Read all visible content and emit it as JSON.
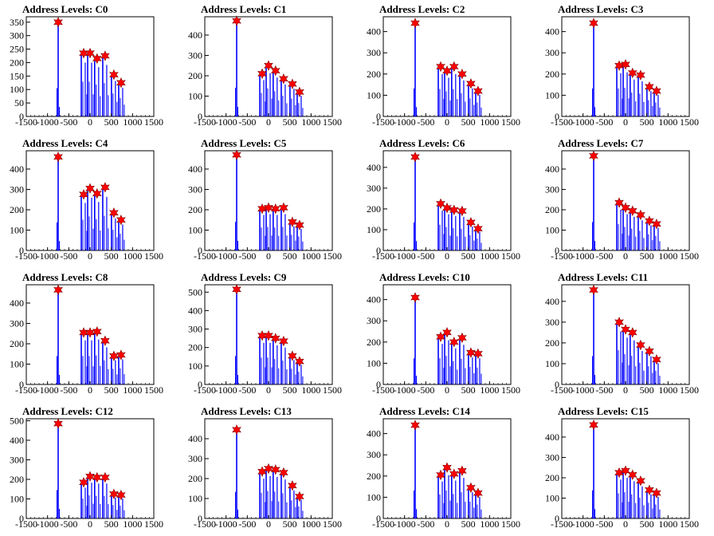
{
  "colors": {
    "histogram": "#0000ff",
    "peak_marker": "#ff0000",
    "axis": "#000000",
    "background": "#ffffff"
  },
  "chart_data": [
    {
      "type": "histogram",
      "title": "Address Levels: C0",
      "xlim": [
        -1500,
        1500
      ],
      "ylim": [
        0,
        370
      ],
      "yticks": [
        0,
        50,
        100,
        150,
        200,
        250,
        300,
        350
      ],
      "peaks": [
        {
          "x": -750,
          "y": 350
        },
        {
          "x": -150,
          "y": 235
        },
        {
          "x": 0,
          "y": 235
        },
        {
          "x": 165,
          "y": 215
        },
        {
          "x": 355,
          "y": 225
        },
        {
          "x": 560,
          "y": 155
        },
        {
          "x": 730,
          "y": 125
        }
      ]
    },
    {
      "type": "histogram",
      "title": "Address Levels: C1",
      "xlim": [
        -1500,
        1500
      ],
      "ylim": [
        0,
        490
      ],
      "yticks": [
        0,
        100,
        200,
        300,
        400
      ],
      "peaks": [
        {
          "x": -750,
          "y": 470
        },
        {
          "x": -150,
          "y": 210
        },
        {
          "x": 0,
          "y": 250
        },
        {
          "x": 165,
          "y": 225
        },
        {
          "x": 355,
          "y": 185
        },
        {
          "x": 560,
          "y": 160
        },
        {
          "x": 730,
          "y": 120
        }
      ]
    },
    {
      "type": "histogram",
      "title": "Address Levels: C2",
      "xlim": [
        -1500,
        1500
      ],
      "ylim": [
        0,
        470
      ],
      "yticks": [
        0,
        100,
        200,
        300,
        400
      ],
      "peaks": [
        {
          "x": -750,
          "y": 440
        },
        {
          "x": -150,
          "y": 235
        },
        {
          "x": 0,
          "y": 215
        },
        {
          "x": 165,
          "y": 235
        },
        {
          "x": 355,
          "y": 200
        },
        {
          "x": 560,
          "y": 155
        },
        {
          "x": 730,
          "y": 120
        }
      ]
    },
    {
      "type": "histogram",
      "title": "Address Levels: C3",
      "xlim": [
        -1500,
        1500
      ],
      "ylim": [
        0,
        470
      ],
      "yticks": [
        0,
        100,
        200,
        300,
        400
      ],
      "peaks": [
        {
          "x": -750,
          "y": 440
        },
        {
          "x": -150,
          "y": 240
        },
        {
          "x": 0,
          "y": 245
        },
        {
          "x": 165,
          "y": 205
        },
        {
          "x": 355,
          "y": 195
        },
        {
          "x": 560,
          "y": 140
        },
        {
          "x": 730,
          "y": 120
        }
      ]
    },
    {
      "type": "histogram",
      "title": "Address Levels: C4",
      "xlim": [
        -1500,
        1500
      ],
      "ylim": [
        0,
        490
      ],
      "yticks": [
        0,
        100,
        200,
        300,
        400
      ],
      "peaks": [
        {
          "x": -750,
          "y": 460
        },
        {
          "x": -150,
          "y": 275
        },
        {
          "x": 0,
          "y": 305
        },
        {
          "x": 165,
          "y": 280
        },
        {
          "x": 355,
          "y": 310
        },
        {
          "x": 560,
          "y": 185
        },
        {
          "x": 730,
          "y": 150
        }
      ]
    },
    {
      "type": "histogram",
      "title": "Address Levels: C5",
      "xlim": [
        -1500,
        1500
      ],
      "ylim": [
        0,
        490
      ],
      "yticks": [
        0,
        100,
        200,
        300,
        400
      ],
      "peaks": [
        {
          "x": -750,
          "y": 470
        },
        {
          "x": -150,
          "y": 205
        },
        {
          "x": 0,
          "y": 210
        },
        {
          "x": 165,
          "y": 205
        },
        {
          "x": 355,
          "y": 210
        },
        {
          "x": 560,
          "y": 140
        },
        {
          "x": 730,
          "y": 125
        }
      ]
    },
    {
      "type": "histogram",
      "title": "Address Levels: C6",
      "xlim": [
        -1500,
        1500
      ],
      "ylim": [
        0,
        480
      ],
      "yticks": [
        0,
        100,
        200,
        300,
        400
      ],
      "peaks": [
        {
          "x": -750,
          "y": 450
        },
        {
          "x": -150,
          "y": 225
        },
        {
          "x": 0,
          "y": 205
        },
        {
          "x": 165,
          "y": 195
        },
        {
          "x": 355,
          "y": 190
        },
        {
          "x": 560,
          "y": 135
        },
        {
          "x": 730,
          "y": 105
        }
      ]
    },
    {
      "type": "histogram",
      "title": "Address Levels: C7",
      "xlim": [
        -1500,
        1500
      ],
      "ylim": [
        0,
        490
      ],
      "yticks": [
        0,
        100,
        200,
        300,
        400
      ],
      "peaks": [
        {
          "x": -750,
          "y": 465
        },
        {
          "x": -150,
          "y": 235
        },
        {
          "x": 0,
          "y": 210
        },
        {
          "x": 165,
          "y": 195
        },
        {
          "x": 355,
          "y": 175
        },
        {
          "x": 560,
          "y": 145
        },
        {
          "x": 730,
          "y": 130
        }
      ]
    },
    {
      "type": "histogram",
      "title": "Address Levels: C8",
      "xlim": [
        -1500,
        1500
      ],
      "ylim": [
        0,
        490
      ],
      "yticks": [
        0,
        100,
        200,
        300,
        400
      ],
      "peaks": [
        {
          "x": -750,
          "y": 465
        },
        {
          "x": -150,
          "y": 255
        },
        {
          "x": 0,
          "y": 255
        },
        {
          "x": 165,
          "y": 260
        },
        {
          "x": 355,
          "y": 215
        },
        {
          "x": 560,
          "y": 140
        },
        {
          "x": 730,
          "y": 145
        }
      ]
    },
    {
      "type": "histogram",
      "title": "Address Levels: C9",
      "xlim": [
        -1500,
        1500
      ],
      "ylim": [
        0,
        540
      ],
      "yticks": [
        0,
        100,
        200,
        300,
        400,
        500
      ],
      "peaks": [
        {
          "x": -750,
          "y": 515
        },
        {
          "x": -150,
          "y": 265
        },
        {
          "x": 0,
          "y": 265
        },
        {
          "x": 165,
          "y": 250
        },
        {
          "x": 355,
          "y": 235
        },
        {
          "x": 560,
          "y": 155
        },
        {
          "x": 730,
          "y": 125
        }
      ]
    },
    {
      "type": "histogram",
      "title": "Address Levels: C10",
      "xlim": [
        -1500,
        1500
      ],
      "ylim": [
        0,
        470
      ],
      "yticks": [
        0,
        100,
        200,
        300,
        400
      ],
      "peaks": [
        {
          "x": -750,
          "y": 410
        },
        {
          "x": -150,
          "y": 225
        },
        {
          "x": 0,
          "y": 245
        },
        {
          "x": 165,
          "y": 200
        },
        {
          "x": 355,
          "y": 220
        },
        {
          "x": 560,
          "y": 150
        },
        {
          "x": 730,
          "y": 145
        }
      ]
    },
    {
      "type": "histogram",
      "title": "Address Levels: C11",
      "xlim": [
        -1500,
        1500
      ],
      "ylim": [
        0,
        480
      ],
      "yticks": [
        0,
        100,
        200,
        300,
        400
      ],
      "peaks": [
        {
          "x": -750,
          "y": 455
        },
        {
          "x": -150,
          "y": 300
        },
        {
          "x": 0,
          "y": 265
        },
        {
          "x": 165,
          "y": 250
        },
        {
          "x": 355,
          "y": 190
        },
        {
          "x": 560,
          "y": 160
        },
        {
          "x": 730,
          "y": 120
        }
      ]
    },
    {
      "type": "histogram",
      "title": "Address Levels: C12",
      "xlim": [
        -1500,
        1500
      ],
      "ylim": [
        0,
        510
      ],
      "yticks": [
        0,
        100,
        200,
        300,
        400,
        500
      ],
      "peaks": [
        {
          "x": -750,
          "y": 485
        },
        {
          "x": -150,
          "y": 185
        },
        {
          "x": 0,
          "y": 215
        },
        {
          "x": 165,
          "y": 210
        },
        {
          "x": 355,
          "y": 210
        },
        {
          "x": 560,
          "y": 125
        },
        {
          "x": 730,
          "y": 120
        }
      ]
    },
    {
      "type": "histogram",
      "title": "Address Levels: C13",
      "xlim": [
        -1500,
        1500
      ],
      "ylim": [
        0,
        500
      ],
      "yticks": [
        0,
        100,
        200,
        300,
        400
      ],
      "peaks": [
        {
          "x": -750,
          "y": 445
        },
        {
          "x": -150,
          "y": 235
        },
        {
          "x": 0,
          "y": 250
        },
        {
          "x": 165,
          "y": 245
        },
        {
          "x": 355,
          "y": 230
        },
        {
          "x": 560,
          "y": 165
        },
        {
          "x": 730,
          "y": 110
        }
      ]
    },
    {
      "type": "histogram",
      "title": "Address Levels: C14",
      "xlim": [
        -1500,
        1500
      ],
      "ylim": [
        0,
        470
      ],
      "yticks": [
        0,
        100,
        200,
        300,
        400
      ],
      "peaks": [
        {
          "x": -750,
          "y": 440
        },
        {
          "x": -150,
          "y": 205
        },
        {
          "x": 0,
          "y": 240
        },
        {
          "x": 165,
          "y": 210
        },
        {
          "x": 355,
          "y": 225
        },
        {
          "x": 560,
          "y": 145
        },
        {
          "x": 730,
          "y": 120
        }
      ]
    },
    {
      "type": "histogram",
      "title": "Address Levels: C15",
      "xlim": [
        -1500,
        1500
      ],
      "ylim": [
        0,
        490
      ],
      "yticks": [
        0,
        100,
        200,
        300,
        400
      ],
      "peaks": [
        {
          "x": -750,
          "y": 460
        },
        {
          "x": -150,
          "y": 225
        },
        {
          "x": 0,
          "y": 235
        },
        {
          "x": 165,
          "y": 215
        },
        {
          "x": 355,
          "y": 185
        },
        {
          "x": 560,
          "y": 140
        },
        {
          "x": 730,
          "y": 125
        }
      ]
    }
  ],
  "shared_axes": {
    "xticks": [
      -1500,
      -1000,
      -500,
      0,
      500,
      1000,
      1500
    ]
  }
}
